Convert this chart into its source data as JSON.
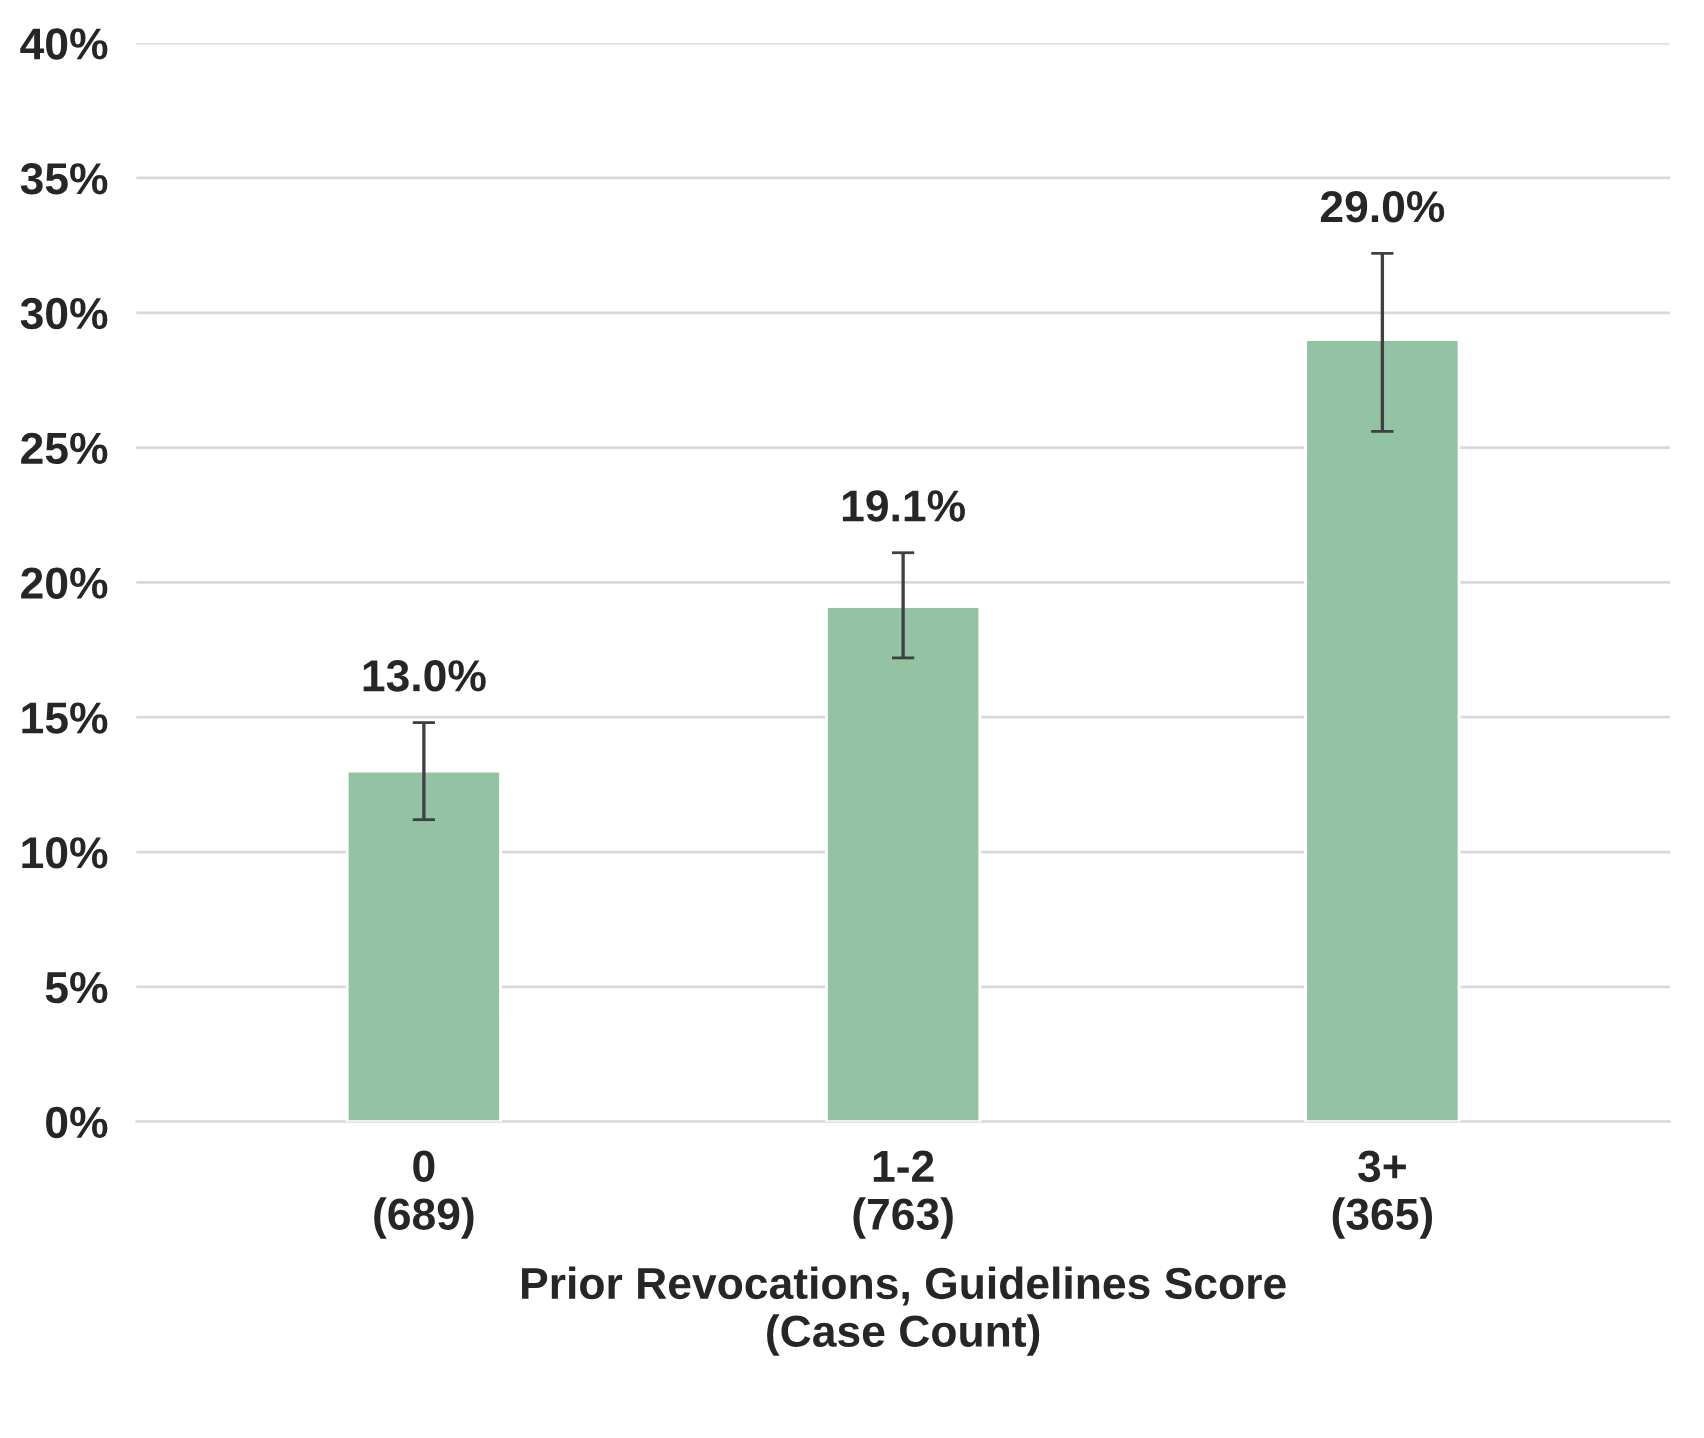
{
  "chart_data": {
    "type": "bar",
    "xlabel": "Prior Revocations, Guidelines Score\n(Case Count)",
    "categories": [
      "0\n(689)",
      "1-2\n(763)",
      "3+\n(365)"
    ],
    "values": [
      13.0,
      19.1,
      29.0
    ],
    "value_labels": [
      "13.0%",
      "19.1%",
      "29.0%"
    ],
    "errors": [
      [
        11.2,
        14.8
      ],
      [
        17.2,
        21.1
      ],
      [
        25.6,
        32.2
      ]
    ],
    "color": "#93c3a2",
    "ylim": [
      0,
      40
    ],
    "yticks": [
      {
        "value": 0,
        "label": "0%"
      },
      {
        "value": 5,
        "label": "5%"
      },
      {
        "value": 10,
        "label": "10%"
      },
      {
        "value": 15,
        "label": "15%"
      },
      {
        "value": 20,
        "label": "20%"
      },
      {
        "value": 25,
        "label": "25%"
      },
      {
        "value": 30,
        "label": "30%"
      },
      {
        "value": 35,
        "label": "35%"
      },
      {
        "value": 40,
        "label": "40%"
      }
    ],
    "grid": "y"
  }
}
